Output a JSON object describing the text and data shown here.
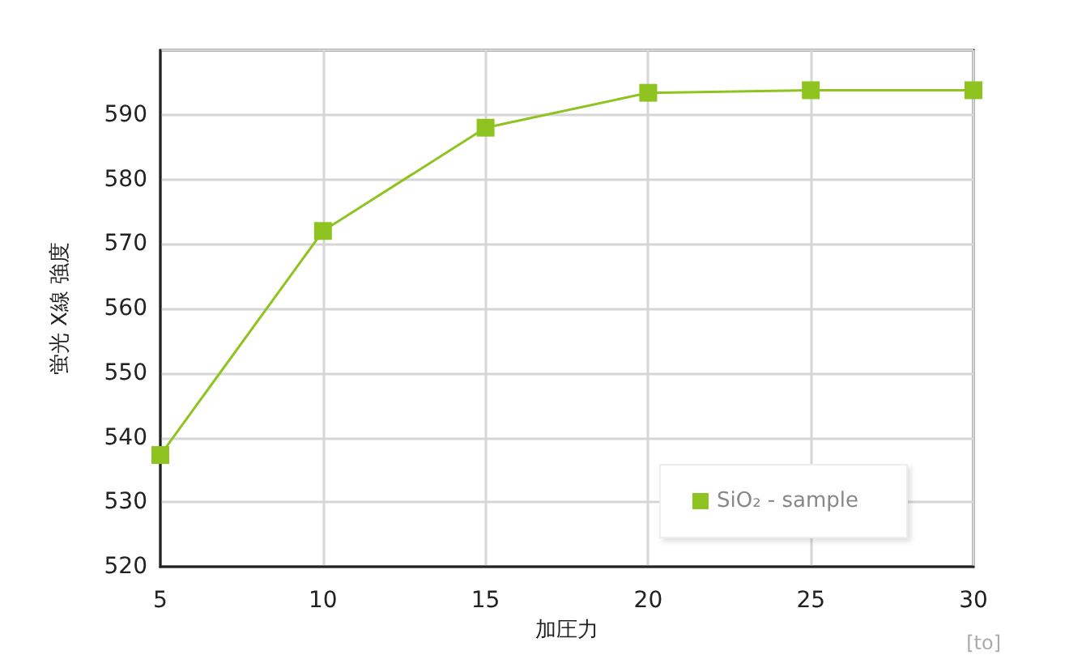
{
  "chart_data": {
    "type": "line",
    "xlabel": "加圧力",
    "ylabel": "蛍光 X線 強度",
    "annotations": [
      "[to]"
    ],
    "x": [
      5,
      10,
      15,
      20,
      25,
      30
    ],
    "series": [
      {
        "name": "SiO₂ - sample",
        "color": "#8fc31f",
        "values": [
          537.3,
          572,
          588,
          593.4,
          593.8,
          593.8
        ]
      }
    ],
    "xlim": [
      5,
      30
    ],
    "xticks": [
      5,
      10,
      15,
      20,
      25,
      30
    ],
    "ylim": [
      520,
      600
    ],
    "yticks": [
      520,
      530,
      540,
      550,
      560,
      570,
      580,
      590,
      {
        "value": 600,
        "label": null
      }
    ],
    "grid": true,
    "legend": "bottom right",
    "marker": "square",
    "line_style": "solid"
  }
}
